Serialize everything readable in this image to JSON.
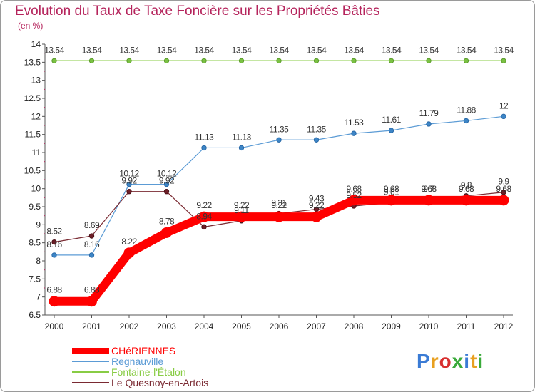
{
  "chart_data": {
    "type": "line",
    "title": "Evolution du Taux de Taxe Foncière sur les Propriétés Bâties",
    "subtitle": "(en %)",
    "xlabel": "",
    "ylabel": "",
    "categories": [
      "2000",
      "2001",
      "2002",
      "2003",
      "2004",
      "2005",
      "2006",
      "2007",
      "2008",
      "2009",
      "2010",
      "2011",
      "2012"
    ],
    "ylim": [
      6.5,
      14
    ],
    "y_ticks": [
      {
        "value": 6.5,
        "label": "6.5"
      },
      {
        "value": 7,
        "label": "7"
      },
      {
        "value": 7.5,
        "label": "7.5"
      },
      {
        "value": 8,
        "label": "8"
      },
      {
        "value": 8.5,
        "label": "8.5"
      },
      {
        "value": 9,
        "label": "9"
      },
      {
        "value": 9.5,
        "label": "9.5"
      },
      {
        "value": 10,
        "label": "10"
      },
      {
        "value": 10.5,
        "label": "10.5"
      },
      {
        "value": 11,
        "label": "11"
      },
      {
        "value": 11.5,
        "label": "11.5"
      },
      {
        "value": 12,
        "label": "12"
      },
      {
        "value": 12.5,
        "label": "12.5"
      },
      {
        "value": 13,
        "label": "13"
      },
      {
        "value": 13.5,
        "label": "13.5"
      },
      {
        "value": 14,
        "label": "14"
      }
    ],
    "grid": false,
    "legend_position": "bottom-left",
    "series": [
      {
        "name": "CHéRIENNES",
        "color": "#ff0000",
        "values": [
          6.88,
          6.88,
          8.22,
          8.78,
          9.22,
          9.22,
          9.22,
          9.22,
          9.68,
          9.68,
          9.68,
          9.68,
          9.68
        ],
        "labels": [
          "6.88",
          "6.88",
          "8.22",
          "8.78",
          "9.22",
          "9.22",
          "9.22",
          "9.22",
          "9.68",
          "9.68",
          "9.68",
          "9.68",
          "9.68"
        ]
      },
      {
        "name": "Regnauville",
        "color": "#5b9bd5",
        "values": [
          8.16,
          8.16,
          10.12,
          10.12,
          11.13,
          11.13,
          11.35,
          11.35,
          11.53,
          11.61,
          11.79,
          11.88,
          12
        ],
        "labels": [
          "8.16",
          "8.16",
          "10.12",
          "10.12",
          "11.13",
          "11.13",
          "11.35",
          "11.35",
          "11.53",
          "11.61",
          "11.79",
          "11.88",
          "12"
        ]
      },
      {
        "name": "Fontaine-l'Étalon",
        "color": "#88cc44",
        "values": [
          13.54,
          13.54,
          13.54,
          13.54,
          13.54,
          13.54,
          13.54,
          13.54,
          13.54,
          13.54,
          13.54,
          13.54,
          13.54
        ],
        "labels": [
          "13.54",
          "13.54",
          "13.54",
          "13.54",
          "13.54",
          "13.54",
          "13.54",
          "13.54",
          "13.54",
          "13.54",
          "13.54",
          "13.54",
          "13.54"
        ]
      },
      {
        "name": "Le Quesnoy-en-Artois",
        "color": "#7a2a32",
        "values": [
          8.52,
          8.69,
          9.92,
          9.92,
          8.94,
          9.11,
          9.31,
          9.43,
          9.52,
          9.61,
          9.7,
          9.8,
          9.9
        ],
        "labels": [
          "8.52",
          "8.69",
          "9.92",
          "9.92",
          "8.94",
          "9.11",
          "9.31",
          "9.43",
          "9.52",
          "9.61",
          "9.7",
          "9.8",
          "9.9"
        ]
      }
    ]
  },
  "logo": {
    "letters": [
      "P",
      "r",
      "o",
      "x",
      "i",
      "t",
      "i"
    ],
    "colors": [
      "#3a7bd5",
      "#e8a020",
      "#d83030",
      "#3aaa3a",
      "#3a7bd5",
      "#e8a020",
      "#3aaa3a"
    ]
  }
}
